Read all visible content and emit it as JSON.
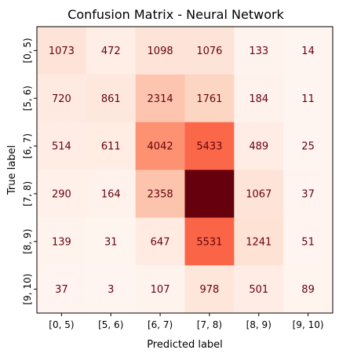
{
  "chart_data": {
    "type": "heatmap",
    "title": "Confusion Matrix - Neural Network",
    "xlabel": "Predicted label",
    "ylabel": "True label",
    "x_categories": [
      "[0, 5)",
      "[5, 6)",
      "[6, 7)",
      "[7, 8)",
      "[8, 9)",
      "[9, 10)"
    ],
    "y_categories": [
      "[0, 5)",
      "[5, 6)",
      "[6, 7)",
      "[7, 8)",
      "[8, 9)",
      "[9, 10)"
    ],
    "values": [
      [
        1073,
        472,
        1098,
        1076,
        133,
        14
      ],
      [
        720,
        861,
        2314,
        1761,
        184,
        11
      ],
      [
        514,
        611,
        4042,
        5433,
        489,
        25
      ],
      [
        290,
        164,
        2358,
        10758,
        1067,
        37
      ],
      [
        139,
        31,
        647,
        5531,
        1241,
        51
      ],
      [
        37,
        3,
        107,
        978,
        501,
        89
      ]
    ],
    "colormap": "Reds",
    "vmin": 3,
    "vmax": 10758,
    "text_color": "#67000d",
    "grid": false,
    "colorbar": false
  }
}
